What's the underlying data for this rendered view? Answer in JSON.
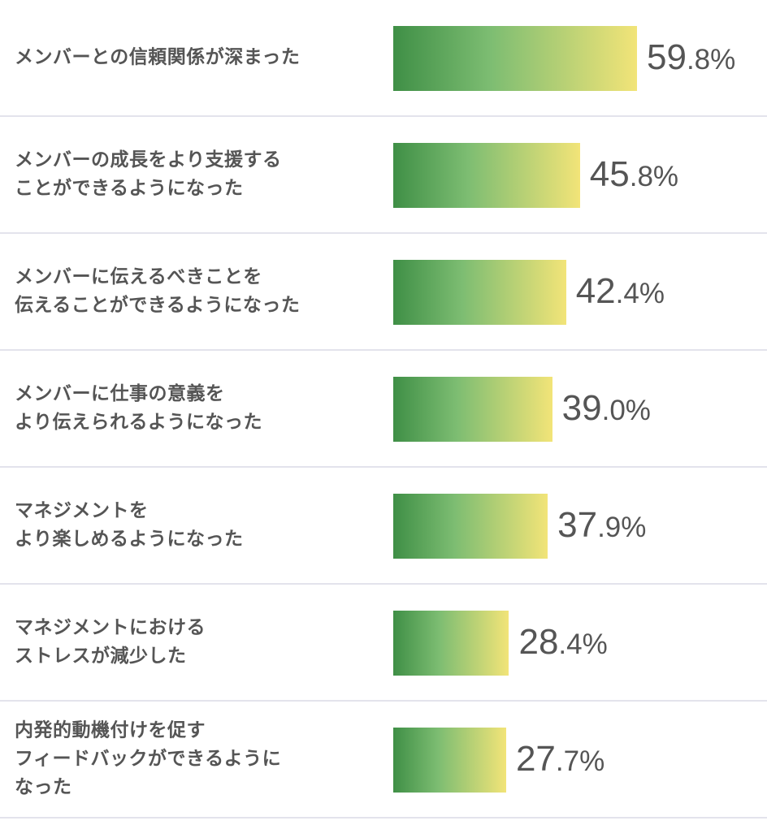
{
  "chart_data": {
    "type": "bar",
    "orientation": "horizontal",
    "categories": [
      "メンバーとの信頼関係が深まった",
      "メンバーの成長をより支援する\nことができるようになった",
      "メンバーに伝えるべきことを\n伝えることができるようになった",
      "メンバーに仕事の意義を\nより伝えられるようになった",
      "マネジメントを\nより楽しめるようになった",
      "マネジメントにおける\nストレスが減少した",
      "内発的動機付けを促す\nフィードバックができるように\nなった"
    ],
    "values": [
      59.8,
      45.8,
      42.4,
      39.0,
      37.9,
      28.4,
      27.7
    ],
    "value_labels": [
      "59.8%",
      "45.8%",
      "42.4%",
      "39.0%",
      "37.9%",
      "28.4%",
      "27.7%"
    ],
    "unit": "%",
    "xlim": [
      0,
      100
    ],
    "grid": false,
    "legend": "none",
    "colors": {
      "bar_start": "#3f8f46",
      "bar_mid": "#7dbd72",
      "bar_end": "#f2e478",
      "text": "#555555",
      "divider": "#e3e3ec"
    }
  }
}
